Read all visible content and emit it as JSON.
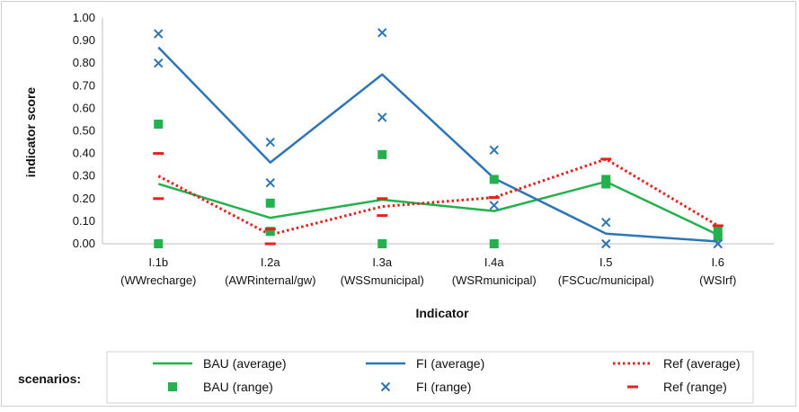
{
  "chart_data": {
    "type": "line",
    "title": "",
    "xlabel": "Indicator",
    "ylabel": "indicator score",
    "ylim": [
      0,
      1
    ],
    "yticks": [
      "0.00",
      "0.10",
      "0.20",
      "0.30",
      "0.40",
      "0.50",
      "0.60",
      "0.70",
      "0.80",
      "0.90",
      "1.00"
    ],
    "categories": [
      {
        "line1": "I.1b",
        "line2": "(WWrecharge)"
      },
      {
        "line1": "I.2a",
        "line2": "(AWRinternal/gw)"
      },
      {
        "line1": "I.3a",
        "line2": "(WSSmunicipal)"
      },
      {
        "line1": "I.4a",
        "line2": "(WSRmunicipal)"
      },
      {
        "line1": "I.5",
        "line2": "(FSCuc/municipal)"
      },
      {
        "line1": "I.6",
        "line2": "(WSIrf)"
      }
    ],
    "grid": false,
    "legend_position": "bottom",
    "legend_title": "scenarios:",
    "series": [
      {
        "name": "BAU (average)",
        "kind": "line",
        "style": "solid",
        "color": "#22b14c",
        "values": [
          0.265,
          0.115,
          0.195,
          0.145,
          0.275,
          0.04
        ]
      },
      {
        "name": "FI (average)",
        "kind": "line",
        "style": "solid",
        "color": "#2e75b6",
        "values": [
          0.87,
          0.36,
          0.75,
          0.29,
          0.045,
          0.01
        ]
      },
      {
        "name": "Ref (average)",
        "kind": "line",
        "style": "dotted",
        "color": "#e8201c",
        "values": [
          0.3,
          0.04,
          0.165,
          0.205,
          0.375,
          0.08
        ]
      },
      {
        "name": "BAU (range)",
        "kind": "marker",
        "marker": "square",
        "color": "#22b14c",
        "points": [
          [
            0,
            0.53
          ],
          [
            0,
            0.0
          ],
          [
            1,
            0.18
          ],
          [
            1,
            0.055
          ],
          [
            2,
            0.395
          ],
          [
            2,
            0.0
          ],
          [
            3,
            0.285
          ],
          [
            3,
            0.0
          ],
          [
            4,
            0.285
          ],
          [
            4,
            0.265
          ],
          [
            5,
            0.055
          ],
          [
            5,
            0.03
          ]
        ]
      },
      {
        "name": "FI (range)",
        "kind": "marker",
        "marker": "x",
        "color": "#2e75b6",
        "points": [
          [
            0,
            0.93
          ],
          [
            0,
            0.8
          ],
          [
            1,
            0.45
          ],
          [
            1,
            0.27
          ],
          [
            2,
            0.935
          ],
          [
            2,
            0.56
          ],
          [
            3,
            0.415
          ],
          [
            3,
            0.17
          ],
          [
            4,
            0.095
          ],
          [
            4,
            0.0
          ],
          [
            5,
            0.0
          ]
        ]
      },
      {
        "name": "Ref (range)",
        "kind": "marker",
        "marker": "dash",
        "color": "#e8201c",
        "points": [
          [
            0,
            0.4
          ],
          [
            0,
            0.2
          ],
          [
            1,
            0.065
          ],
          [
            1,
            0.0
          ],
          [
            2,
            0.2
          ],
          [
            2,
            0.125
          ],
          [
            3,
            0.205
          ],
          [
            4,
            0.375
          ],
          [
            5,
            0.08
          ]
        ]
      }
    ]
  }
}
